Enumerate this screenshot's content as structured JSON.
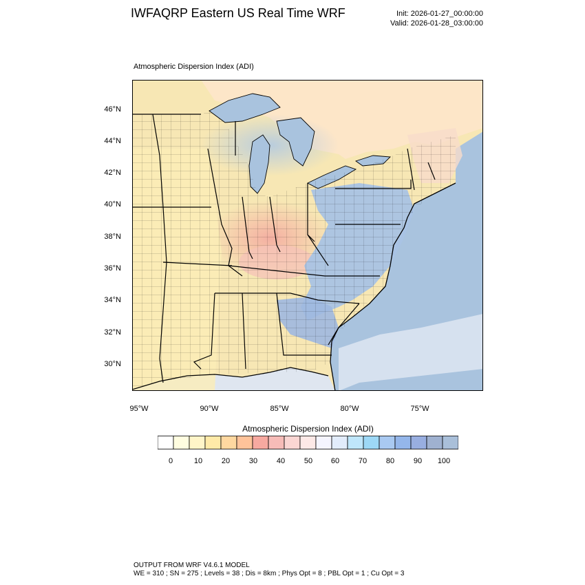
{
  "header": {
    "title": "IWFAQRP Eastern US Real Time WRF",
    "init": "Init: 2026-01-27_00:00:00",
    "valid": "Valid: 2026-01-28_03:00:00"
  },
  "map": {
    "subtitle": "Atmospheric Dispersion Index   (ADI)",
    "lat_ticks": [
      "46°N",
      "44°N",
      "42°N",
      "40°N",
      "38°N",
      "36°N",
      "34°N",
      "32°N",
      "30°N"
    ],
    "lon_ticks": [
      "95°W",
      "90°W",
      "85°W",
      "80°W",
      "75°W"
    ],
    "colors": {
      "land": "#f5e6b8",
      "water": "#a9c3de",
      "border": "#000000"
    }
  },
  "colorbar": {
    "title": "Atmospheric Dispersion Index  (ADI)",
    "labels": [
      "0",
      "10",
      "20",
      "30",
      "40",
      "50",
      "60",
      "70",
      "80",
      "90",
      "100"
    ],
    "colors": [
      "#ffffff",
      "#fffde0",
      "#fff5c8",
      "#ffeaa8",
      "#ffd8a0",
      "#ffc39a",
      "#f7a9a0",
      "#f7bcb8",
      "#fbd6d3",
      "#fde9e7",
      "#f5f5ff",
      "#e2ecfb",
      "#bfe6fb",
      "#9dd8f6",
      "#a9c9f1",
      "#94b6ea",
      "#98aee0",
      "#9fb1d0",
      "#a9bfd9"
    ]
  },
  "footer": {
    "line1": "OUTPUT FROM WRF V4.6.1 MODEL",
    "line2": "WE = 310 ; SN = 275 ; Levels = 38 ; Dis = 8km ; Phys Opt = 8 ; PBL Opt = 1 ; Cu Opt = 3"
  }
}
